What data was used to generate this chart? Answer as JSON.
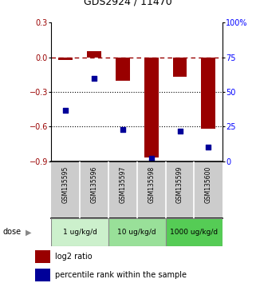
{
  "title": "GDS2924 / 11470",
  "samples": [
    "GSM135595",
    "GSM135596",
    "GSM135597",
    "GSM135598",
    "GSM135599",
    "GSM135600"
  ],
  "log2_ratio": [
    -0.02,
    0.05,
    -0.2,
    -0.87,
    -0.17,
    -0.62
  ],
  "percentile_rank": [
    37,
    60,
    23,
    2,
    22,
    10
  ],
  "dose_groups": [
    {
      "label": "1 ug/kg/d",
      "color": "#ccf0cc"
    },
    {
      "label": "10 ug/kg/d",
      "color": "#99e099"
    },
    {
      "label": "1000 ug/kg/d",
      "color": "#55cc55"
    }
  ],
  "ylim_left": [
    -0.9,
    0.3
  ],
  "ylim_right": [
    0,
    100
  ],
  "yticks_left": [
    0.3,
    0.0,
    -0.3,
    -0.6,
    -0.9
  ],
  "yticks_right": [
    100,
    75,
    50,
    25,
    0
  ],
  "bar_color": "#990000",
  "dot_color": "#000099",
  "bar_width": 0.5,
  "legend_red_label": "log2 ratio",
  "legend_blue_label": "percentile rank within the sample"
}
